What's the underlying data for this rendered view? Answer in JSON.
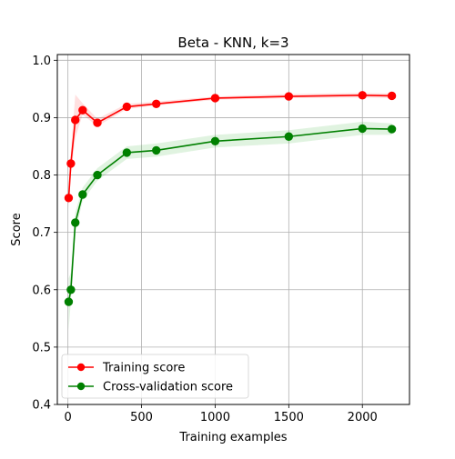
{
  "chart_data": {
    "type": "line",
    "title": "Beta - KNN, k=3",
    "xlabel": "Training examples",
    "ylabel": "Score",
    "xlim": [
      -72,
      2320
    ],
    "ylim": [
      0.4,
      1.01
    ],
    "xticks": [
      0,
      500,
      1000,
      1500,
      2000
    ],
    "xtick_labels": [
      "0",
      "500",
      "1000",
      "1500",
      "2000"
    ],
    "yticks": [
      0.4,
      0.5,
      0.6,
      0.7,
      0.8,
      0.9,
      1.0
    ],
    "ytick_labels": [
      "0.4",
      "0.5",
      "0.6",
      "0.7",
      "0.8",
      "0.9",
      "1.0"
    ],
    "grid": true,
    "legend_position": "lower-left",
    "x": [
      5,
      20,
      50,
      100,
      200,
      400,
      600,
      1000,
      1500,
      2000,
      2200
    ],
    "series": [
      {
        "name": "Training score",
        "color": "#ff0000",
        "band_color": "#ff0000",
        "values": [
          0.76,
          0.82,
          0.896,
          0.913,
          0.891,
          0.919,
          0.924,
          0.934,
          0.937,
          0.939,
          0.938
        ],
        "band_lower": [
          0.74,
          0.8,
          0.865,
          0.905,
          0.885,
          0.915,
          0.921,
          0.931,
          0.934,
          0.935,
          0.934
        ],
        "band_upper": [
          0.78,
          0.84,
          0.94,
          0.925,
          0.898,
          0.924,
          0.928,
          0.937,
          0.941,
          0.943,
          0.942
        ]
      },
      {
        "name": "Cross-validation score",
        "color": "#008000",
        "band_color": "#00a000",
        "values": [
          0.579,
          0.6,
          0.717,
          0.766,
          0.8,
          0.839,
          0.843,
          0.859,
          0.867,
          0.881,
          0.88
        ],
        "band_lower": [
          0.53,
          0.58,
          0.7,
          0.755,
          0.79,
          0.828,
          0.832,
          0.848,
          0.855,
          0.87,
          0.87
        ],
        "band_upper": [
          0.62,
          0.63,
          0.735,
          0.778,
          0.812,
          0.85,
          0.855,
          0.87,
          0.878,
          0.893,
          0.89
        ]
      }
    ]
  }
}
